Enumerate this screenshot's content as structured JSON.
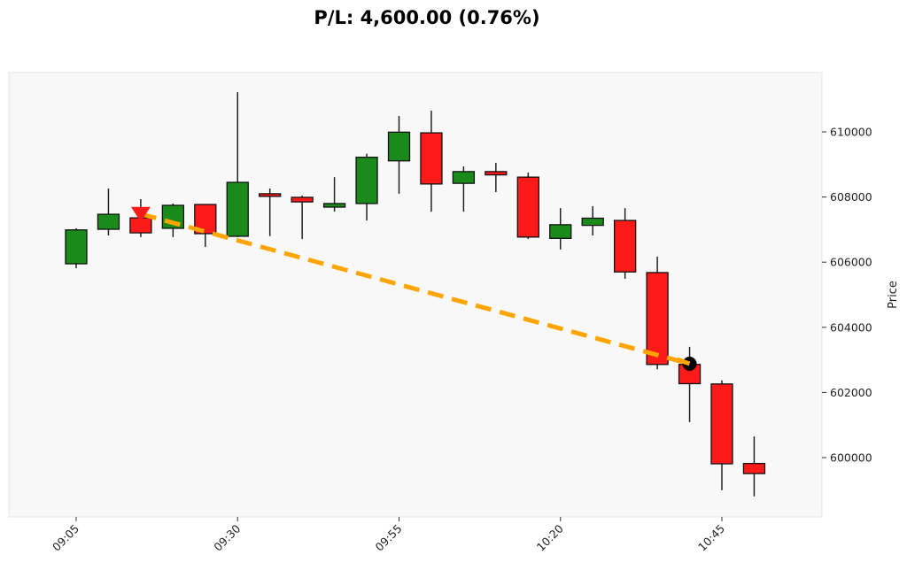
{
  "chart_data": {
    "type": "candlestick",
    "title": "P/L: 4,600.00 (0.76%)",
    "xlabel": "",
    "ylabel": "Price",
    "ylim": [
      598180,
      611820
    ],
    "x_tick_labels": [
      "09:05",
      "09:30",
      "09:55",
      "10:20",
      "10:45"
    ],
    "y_ticks": [
      600000,
      602000,
      604000,
      606000,
      608000,
      610000
    ],
    "y_tick_labels": [
      "600000",
      "602000",
      "604000",
      "606000",
      "608000",
      "610000"
    ],
    "grid": false,
    "colors": {
      "up": "#1a8a1a",
      "down": "#ff1a1a",
      "trade_line": "#ffa500",
      "entry_marker": "#ff1a1a",
      "exit_marker": "#000000",
      "background": "#f8f8f8"
    },
    "candles": [
      {
        "time": "09:05",
        "open": 605950,
        "high": 607040,
        "low": 605815,
        "close": 606990
      },
      {
        "time": "09:10",
        "open": 607010,
        "high": 608260,
        "low": 606820,
        "close": 607470
      },
      {
        "time": "09:15",
        "open": 607360,
        "high": 607935,
        "low": 606770,
        "close": 606900
      },
      {
        "time": "09:20",
        "open": 607040,
        "high": 607800,
        "low": 606770,
        "close": 607745
      },
      {
        "time": "09:25",
        "open": 607770,
        "high": 607770,
        "low": 606470,
        "close": 606875
      },
      {
        "time": "09:30",
        "open": 606795,
        "high": 611220,
        "low": 606770,
        "close": 608450
      },
      {
        "time": "09:35",
        "open": 608100,
        "high": 608260,
        "low": 606800,
        "close": 608020
      },
      {
        "time": "09:40",
        "open": 607990,
        "high": 608040,
        "low": 606710,
        "close": 607850
      },
      {
        "time": "09:45",
        "open": 607690,
        "high": 608610,
        "low": 607550,
        "close": 607800
      },
      {
        "time": "09:50",
        "open": 607800,
        "high": 609330,
        "low": 607280,
        "close": 609220
      },
      {
        "time": "09:55",
        "open": 609110,
        "high": 610490,
        "low": 608100,
        "close": 609990
      },
      {
        "time": "10:00",
        "open": 609970,
        "high": 610650,
        "low": 607550,
        "close": 608400
      },
      {
        "time": "10:05",
        "open": 608420,
        "high": 608940,
        "low": 607550,
        "close": 608780
      },
      {
        "time": "10:10",
        "open": 608780,
        "high": 609050,
        "low": 608150,
        "close": 608680
      },
      {
        "time": "10:15",
        "open": 608610,
        "high": 608750,
        "low": 606710,
        "close": 606770
      },
      {
        "time": "10:20",
        "open": 606730,
        "high": 607660,
        "low": 606390,
        "close": 607150
      },
      {
        "time": "10:25",
        "open": 607130,
        "high": 607720,
        "low": 606820,
        "close": 607350
      },
      {
        "time": "10:30",
        "open": 607280,
        "high": 607660,
        "low": 605490,
        "close": 605700
      },
      {
        "time": "10:35",
        "open": 605680,
        "high": 606170,
        "low": 602710,
        "close": 602860
      },
      {
        "time": "10:40",
        "open": 602860,
        "high": 603400,
        "low": 601090,
        "close": 602270
      },
      {
        "time": "10:45",
        "open": 602260,
        "high": 602370,
        "low": 599000,
        "close": 599810
      },
      {
        "time": "10:50",
        "open": 599820,
        "high": 600650,
        "low": 598810,
        "close": 599510
      }
    ],
    "trade": {
      "side": "short",
      "entry": {
        "time": "09:15",
        "price": 607480
      },
      "exit": {
        "time": "10:40",
        "price": 602880
      },
      "pnl": 4600.0,
      "pnl_pct": 0.76
    }
  }
}
